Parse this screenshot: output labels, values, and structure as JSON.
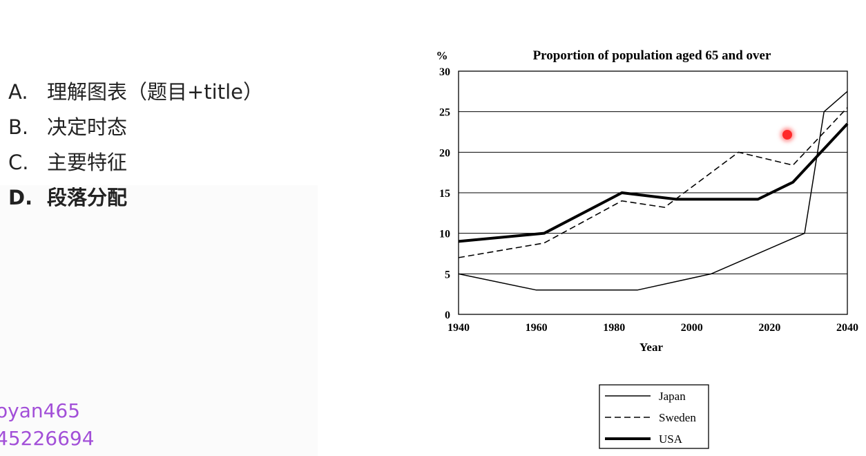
{
  "outline": {
    "items": [
      {
        "letter": "A.",
        "text": "理解图表（题目+title）"
      },
      {
        "letter": "B.",
        "text": "决定时态"
      },
      {
        "letter": "C.",
        "text": "主要特征"
      },
      {
        "letter": "D.",
        "text": "段落分配"
      }
    ],
    "active_index": 3
  },
  "watermark": {
    "line1": "oyan465",
    "line2": "45226694"
  },
  "colors": {
    "watermark": "#a24fd8",
    "pointer": "#ff2a2a"
  },
  "chart_data": {
    "type": "line",
    "title": "Proportion of population aged 65 and over",
    "ylabel": "%",
    "xlabel": "Year",
    "xlim": [
      1940,
      2040
    ],
    "ylim": [
      0,
      30
    ],
    "xticks": [
      1940,
      1960,
      1980,
      2000,
      2020,
      2040
    ],
    "yticks": [
      0,
      5,
      10,
      15,
      20,
      25,
      30
    ],
    "grid": "horizontal",
    "legend_position": "bottom",
    "series": [
      {
        "name": "Japan",
        "style": "thin",
        "x": [
          1940,
          1960,
          1986,
          2005,
          2029,
          2034,
          2040
        ],
        "y": [
          5,
          3,
          3,
          5,
          10,
          25,
          27.5
        ]
      },
      {
        "name": "Sweden",
        "style": "dashed",
        "x": [
          1940,
          1962,
          1982,
          1993,
          2012,
          2026,
          2040
        ],
        "y": [
          7,
          8.8,
          14,
          13.2,
          20,
          18.4,
          25.5
        ]
      },
      {
        "name": "USA",
        "style": "thick",
        "x": [
          1940,
          1962,
          1982,
          1996,
          2017,
          2026,
          2040
        ],
        "y": [
          9,
          10,
          15,
          14.2,
          14.2,
          16.3,
          23.5
        ]
      }
    ]
  }
}
